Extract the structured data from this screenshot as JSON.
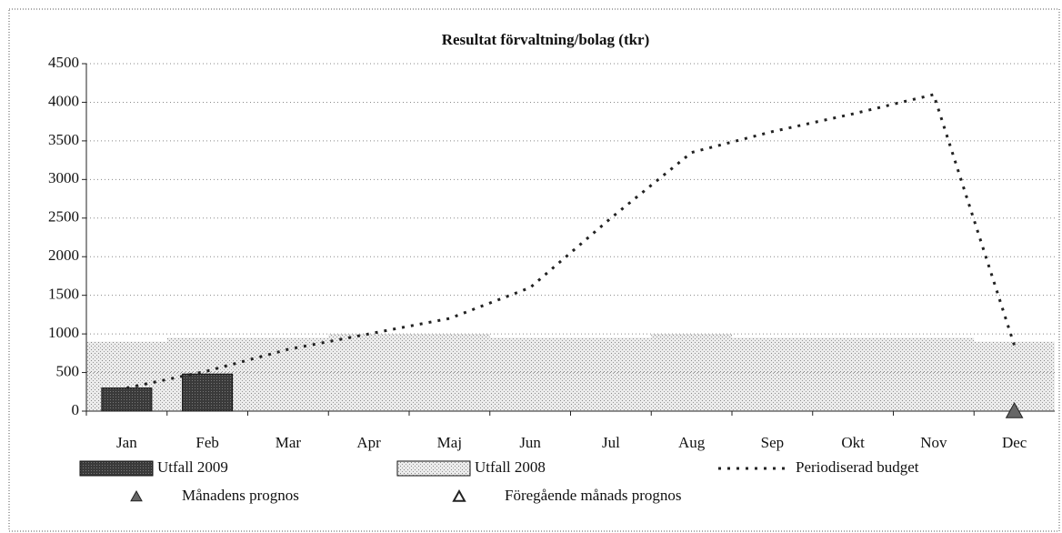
{
  "chart_data": {
    "type": "bar",
    "title": "Resultat förvaltning/bolag (tkr)",
    "categories": [
      "Jan",
      "Feb",
      "Mar",
      "Apr",
      "Maj",
      "Jun",
      "Jul",
      "Aug",
      "Sep",
      "Okt",
      "Nov",
      "Dec"
    ],
    "ylim": [
      0,
      4500
    ],
    "yticks": [
      0,
      500,
      1000,
      1500,
      2000,
      2500,
      3000,
      3500,
      4000,
      4500
    ],
    "grid": true,
    "legend": "bottom",
    "series": [
      {
        "name": "Utfall 2009",
        "type": "bar",
        "color": "#333333",
        "values": [
          300,
          480,
          null,
          null,
          null,
          null,
          null,
          null,
          null,
          null,
          null,
          null
        ]
      },
      {
        "name": "Utfall 2008",
        "type": "area",
        "color": "#cfcfcf",
        "values": [
          900,
          950,
          950,
          1000,
          1000,
          950,
          950,
          1000,
          950,
          950,
          950,
          900
        ]
      },
      {
        "name": "Periodiserad budget",
        "type": "line",
        "color": "#222222",
        "values": [
          300,
          520,
          800,
          1000,
          1200,
          1600,
          2500,
          3350,
          3620,
          3850,
          4100,
          850
        ]
      },
      {
        "name": "Månadens prognos",
        "type": "scatter",
        "color": "#666666",
        "values": [
          null,
          null,
          null,
          null,
          null,
          null,
          null,
          null,
          null,
          null,
          null,
          0
        ]
      },
      {
        "name": "Föregående månads prognos",
        "type": "scatter-open",
        "color": "#222222",
        "values": [
          null,
          null,
          null,
          null,
          null,
          null,
          null,
          null,
          null,
          null,
          null,
          null
        ]
      }
    ]
  }
}
